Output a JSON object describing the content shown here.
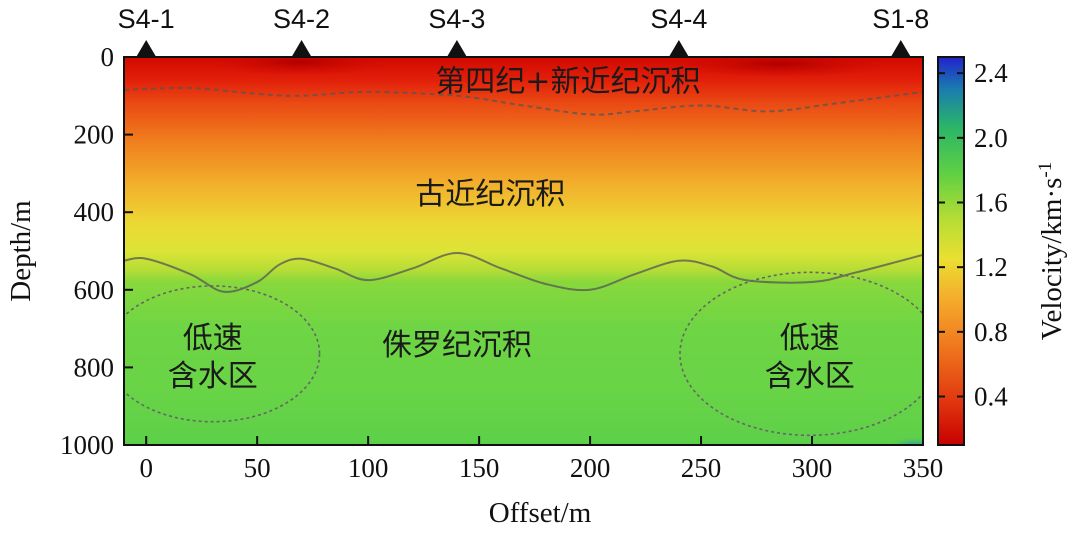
{
  "chart_data": {
    "type": "heatmap",
    "title": "",
    "xlabel": "Offset/m",
    "ylabel": "Depth/m",
    "xlim": [
      -10,
      350
    ],
    "ylim": [
      1000,
      0
    ],
    "x_ticks": [
      0,
      50,
      100,
      150,
      200,
      250,
      300,
      350
    ],
    "y_ticks": [
      0,
      200,
      400,
      600,
      800,
      1000
    ],
    "colorbar": {
      "label": "Velocity/km·s",
      "label_superscript": "-1",
      "range": [
        0.1,
        2.5
      ],
      "ticks": [
        0.4,
        0.8,
        1.2,
        1.6,
        2.0,
        2.4
      ],
      "colors": [
        "#c80000",
        "#e23a10",
        "#f07a1e",
        "#f4ae2c",
        "#eadf32",
        "#b6dd34",
        "#5fd043",
        "#2ab568",
        "#1a7ab0",
        "#2222cc"
      ]
    },
    "stations": [
      {
        "name": "S4-1",
        "offset": 0
      },
      {
        "name": "S4-2",
        "offset": 70
      },
      {
        "name": "S4-3",
        "offset": 140
      },
      {
        "name": "S4-4",
        "offset": 240
      },
      {
        "name": "S1-8",
        "offset": 340
      }
    ],
    "layers": [
      {
        "label": "第四纪+新近纪沉积",
        "offset": 190,
        "depth": 60
      },
      {
        "label": "古近纪沉积",
        "offset": 155,
        "depth": 350
      },
      {
        "label": "侏罗纪沉积",
        "offset": 140,
        "depth": 740
      }
    ],
    "low_velocity_zones": [
      {
        "label_line1": "低速",
        "label_line2": "含水区",
        "offset": 30,
        "depth": 765,
        "width": 37,
        "height": 350
      },
      {
        "label_line1": "低速",
        "label_line2": "含水区",
        "offset": 299,
        "depth": 765,
        "width": 45,
        "height": 420
      }
    ],
    "boundaries": [
      {
        "name": "dashed",
        "points": [
          [
            -10,
            85
          ],
          [
            20,
            80
          ],
          [
            50,
            95
          ],
          [
            70,
            100
          ],
          [
            100,
            90
          ],
          [
            140,
            100
          ],
          [
            170,
            125
          ],
          [
            200,
            148
          ],
          [
            220,
            140
          ],
          [
            250,
            125
          ],
          [
            280,
            140
          ],
          [
            310,
            120
          ],
          [
            350,
            90
          ]
        ]
      },
      {
        "name": "solid",
        "points": [
          [
            -10,
            525
          ],
          [
            0,
            520
          ],
          [
            20,
            560
          ],
          [
            35,
            605
          ],
          [
            50,
            580
          ],
          [
            60,
            535
          ],
          [
            70,
            520
          ],
          [
            85,
            545
          ],
          [
            100,
            575
          ],
          [
            120,
            545
          ],
          [
            140,
            505
          ],
          [
            160,
            545
          ],
          [
            180,
            585
          ],
          [
            200,
            600
          ],
          [
            220,
            560
          ],
          [
            240,
            525
          ],
          [
            255,
            540
          ],
          [
            270,
            575
          ],
          [
            300,
            580
          ],
          [
            320,
            555
          ],
          [
            350,
            510
          ]
        ]
      }
    ],
    "grid": false
  }
}
